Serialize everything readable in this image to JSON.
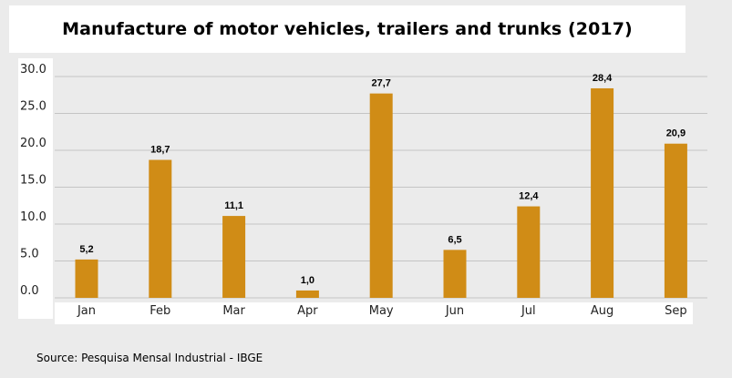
{
  "chart_data": {
    "type": "bar",
    "title": "Manufacture of motor vehicles, trailers and trunks (2017)",
    "xlabel": "",
    "ylabel": "",
    "categories": [
      "Jan",
      "Feb",
      "Mar",
      "Apr",
      "May",
      "Jun",
      "Jul",
      "Aug",
      "Sep"
    ],
    "values": [
      5.2,
      18.7,
      11.1,
      1.0,
      27.7,
      6.5,
      12.4,
      28.4,
      20.9
    ],
    "value_labels": [
      "5,2",
      "18,7",
      "11,1",
      "1,0",
      "27,7",
      "6,5",
      "12,4",
      "28,4",
      "20,9"
    ],
    "ylim": [
      0,
      30
    ],
    "yticks": [
      "0.0",
      "5.0",
      "10.0",
      "15.0",
      "20.0",
      "25.0",
      "30.0"
    ],
    "grid": true,
    "bar_color": "#d08c16",
    "grid_color": "#c4c4c4"
  },
  "source": "Source: Pesquisa Mensal Industrial - IBGE"
}
